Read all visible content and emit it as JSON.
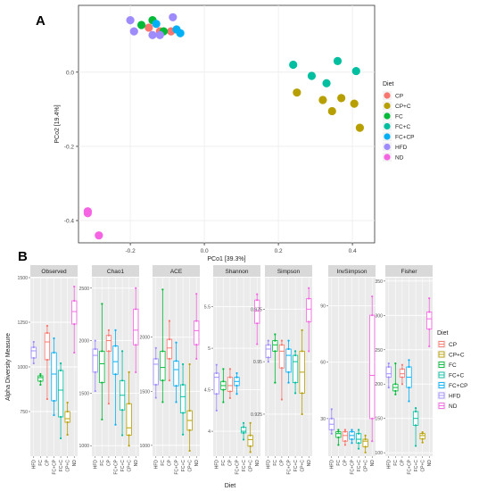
{
  "chart_data": [
    {
      "type": "scatter",
      "panel_label": "A",
      "xlabel": "PCo1 [39.3%]",
      "ylabel": "PCo2 [19.4%]",
      "xlim": [
        -0.34,
        0.46
      ],
      "ylim": [
        -0.46,
        0.18
      ],
      "x_ticks": [
        -0.2,
        0.0,
        0.2,
        0.4
      ],
      "x_tick_labels": [
        "-0.2",
        "0.0",
        "0.2",
        "0.4"
      ],
      "y_ticks": [
        0.0,
        -0.2,
        -0.4
      ],
      "y_tick_labels": [
        "0.0",
        "-0.2",
        "-0.4"
      ],
      "grid": true,
      "legend_title": "Diet",
      "legend_position": "right",
      "series": [
        {
          "name": "CP",
          "color": "#F8766D",
          "points": [
            [
              -0.12,
              0.11
            ],
            [
              -0.09,
              0.11
            ],
            [
              -0.15,
              0.12
            ]
          ]
        },
        {
          "name": "CP+C",
          "color": "#B79F00",
          "points": [
            [
              0.25,
              -0.055
            ],
            [
              0.32,
              -0.075
            ],
            [
              0.345,
              -0.105
            ],
            [
              0.37,
              -0.07
            ],
            [
              0.405,
              -0.085
            ],
            [
              0.42,
              -0.15
            ]
          ]
        },
        {
          "name": "FC",
          "color": "#00BA38",
          "points": [
            [
              -0.17,
              0.127
            ],
            [
              -0.14,
              0.14
            ],
            [
              -0.11,
              0.11
            ]
          ]
        },
        {
          "name": "FC+C",
          "color": "#00BFA0",
          "points": [
            [
              0.24,
              0.02
            ],
            [
              0.29,
              -0.01
            ],
            [
              0.33,
              -0.03
            ],
            [
              0.36,
              0.03
            ],
            [
              0.41,
              0.003
            ]
          ]
        },
        {
          "name": "FC+CP",
          "color": "#00B0F6",
          "points": [
            [
              -0.13,
              0.13
            ],
            [
              -0.075,
              0.115
            ],
            [
              -0.065,
              0.105
            ]
          ]
        },
        {
          "name": "HFD",
          "color": "#9E8CFF",
          "points": [
            [
              -0.2,
              0.14
            ],
            [
              -0.19,
              0.11
            ],
            [
              -0.14,
              0.1
            ],
            [
              -0.085,
              0.148
            ],
            [
              -0.12,
              0.1
            ]
          ]
        },
        {
          "name": "ND",
          "color": "#F564E3",
          "points": [
            [
              -0.315,
              -0.375
            ],
            [
              -0.315,
              -0.38
            ],
            [
              -0.285,
              -0.44
            ]
          ]
        }
      ]
    },
    {
      "type": "box",
      "panel_label": "B",
      "xlabel": "Diet",
      "ylabel": "Alpha Diversity Measure",
      "categories": [
        "HFD",
        "FC",
        "CP",
        "FC+CP",
        "FC+C",
        "CP+C",
        "ND"
      ],
      "legend_title": "Diet",
      "legend_position": "right",
      "legend_entries": [
        {
          "name": "CP",
          "color": "#F8766D"
        },
        {
          "name": "CP+C",
          "color": "#B79F00"
        },
        {
          "name": "FC",
          "color": "#00BA38"
        },
        {
          "name": "FC+C",
          "color": "#00BFA0"
        },
        {
          "name": "FC+CP",
          "color": "#00B0F6"
        },
        {
          "name": "HFD",
          "color": "#9E8CFF"
        },
        {
          "name": "ND",
          "color": "#F564E3"
        }
      ],
      "category_colors": {
        "HFD": "#9E8CFF",
        "FC": "#00BA38",
        "CP": "#F8766D",
        "FC+CP": "#00B0F6",
        "FC+C": "#00BFA0",
        "CP+C": "#B79F00",
        "ND": "#F564E3"
      },
      "facets": [
        {
          "title": "Observed",
          "ylim": [
            500,
            1500
          ],
          "yticks": [
            750,
            1000,
            1250,
            1500
          ],
          "boxes": [
            [
              1020,
              1050,
              1090,
              1110,
              1140
            ],
            [
              900,
              920,
              940,
              950,
              960
            ],
            [
              820,
              1040,
              1140,
              1190,
              1230
            ],
            [
              730,
              810,
              960,
              1080,
              1160
            ],
            [
              600,
              720,
              870,
              980,
              1020
            ],
            [
              620,
              690,
              710,
              750,
              800
            ],
            [
              1080,
              1240,
              1310,
              1370,
              1450
            ]
          ]
        },
        {
          "title": "Chao1",
          "ylim": [
            900,
            2600
          ],
          "yticks": [
            1000,
            1500,
            2000,
            2500
          ],
          "boxes": [
            [
              1520,
              1700,
              1860,
              1920,
              2000
            ],
            [
              1250,
              1600,
              1780,
              1900,
              2350
            ],
            [
              1400,
              1900,
              2000,
              2050,
              2100
            ],
            [
              1200,
              1680,
              1800,
              1950,
              2100
            ],
            [
              1100,
              1340,
              1480,
              1620,
              1900
            ],
            [
              1000,
              1100,
              1170,
              1400,
              1700
            ],
            [
              1700,
              1960,
              2100,
              2300,
              2500
            ]
          ]
        },
        {
          "title": "ACE",
          "ylim": [
            900,
            2550
          ],
          "yticks": [
            1000,
            1500,
            2000
          ],
          "boxes": [
            [
              1440,
              1560,
              1750,
              1800,
              1900
            ],
            [
              1400,
              1600,
              1720,
              1870,
              2440
            ],
            [
              1600,
              1800,
              1900,
              1980,
              2150
            ],
            [
              1400,
              1550,
              1700,
              1780,
              1950
            ],
            [
              1100,
              1300,
              1450,
              1560,
              1750
            ],
            [
              950,
              1140,
              1230,
              1320,
              1750
            ],
            [
              1800,
              1930,
              2060,
              2150,
              2400
            ]
          ]
        },
        {
          "title": "Shannon",
          "ylim": [
            3.7,
            5.85
          ],
          "yticks": [
            4.0,
            4.5,
            5.0,
            5.5
          ],
          "boxes": [
            [
              4.25,
              4.45,
              4.65,
              4.7,
              4.8
            ],
            [
              4.35,
              4.5,
              4.55,
              4.6,
              4.75
            ],
            [
              4.4,
              4.48,
              4.55,
              4.65,
              4.75
            ],
            [
              4.45,
              4.55,
              4.6,
              4.65,
              4.7
            ],
            [
              3.9,
              3.98,
              4.0,
              4.05,
              4.1
            ],
            [
              3.75,
              3.82,
              3.9,
              3.95,
              4.1
            ],
            [
              5.05,
              5.3,
              5.45,
              5.58,
              5.65
            ]
          ]
        },
        {
          "title": "Simpson",
          "ylim": [
            0.905,
            0.99
          ],
          "yticks": [
            0.925,
            0.95,
            0.975
          ],
          "boxes": [
            [
              0.95,
              0.952,
              0.956,
              0.958,
              0.96
            ],
            [
              0.94,
              0.955,
              0.958,
              0.96,
              0.963
            ],
            [
              0.932,
              0.947,
              0.955,
              0.958,
              0.96
            ],
            [
              0.94,
              0.945,
              0.953,
              0.956,
              0.96
            ],
            [
              0.935,
              0.94,
              0.95,
              0.953,
              0.955
            ],
            [
              0.925,
              0.935,
              0.945,
              0.955,
              0.965
            ],
            [
              0.955,
              0.969,
              0.975,
              0.98,
              0.985
            ]
          ]
        },
        {
          "title": "InvSimpson",
          "ylim": [
            10,
            105
          ],
          "yticks": [
            30,
            60,
            90
          ],
          "boxes": [
            [
              22,
              24,
              27,
              30,
              35
            ],
            [
              16,
              20,
              22,
              23,
              24
            ],
            [
              16,
              18,
              21,
              23,
              24
            ],
            [
              17,
              19,
              21,
              23,
              24
            ],
            [
              14,
              17,
              19,
              22,
              24
            ],
            [
              12,
              15,
              18,
              19,
              21
            ],
            [
              18,
              30,
              53,
              85,
              95
            ]
          ]
        },
        {
          "title": "Fisher",
          "ylim": [
            95,
            355
          ],
          "yticks": [
            100,
            150,
            200,
            250,
            300,
            350
          ],
          "boxes": [
            [
              195,
              210,
              215,
              225,
              230
            ],
            [
              185,
              190,
              195,
              200,
              230
            ],
            [
              200,
              210,
              215,
              222,
              228
            ],
            [
              175,
              195,
              210,
              225,
              235
            ],
            [
              110,
              140,
              150,
              160,
              165
            ],
            [
              115,
              120,
              125,
              128,
              130
            ],
            [
              255,
              280,
              295,
              305,
              325
            ]
          ]
        }
      ]
    }
  ]
}
